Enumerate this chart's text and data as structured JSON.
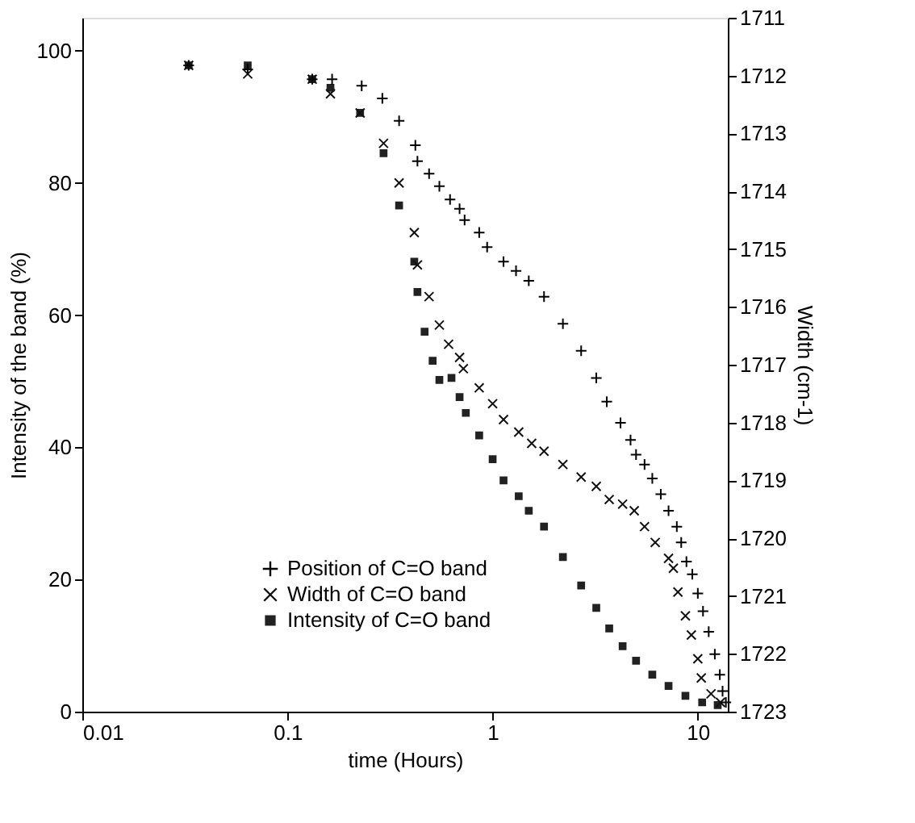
{
  "chart_data": {
    "type": "scatter",
    "xlabel": "time (Hours)",
    "ylabel": "Intensity of the band (%)",
    "y2label": "Width (cm-1)",
    "log": "x",
    "xlim": [
      0.01,
      14
    ],
    "xticks": [
      0.01,
      0.1,
      1,
      10
    ],
    "ylim": [
      0,
      105
    ],
    "yticks": [
      0,
      20,
      40,
      60,
      80,
      100
    ],
    "y2lim": [
      1723,
      1711
    ],
    "y2ticks": [
      1711,
      1712,
      1713,
      1714,
      1715,
      1716,
      1717,
      1718,
      1719,
      1720,
      1721,
      1722,
      1723
    ],
    "legend": "bottom",
    "grid": false,
    "series": [
      {
        "name": "Position of C=O band",
        "color": "#000000",
        "marker": "cross",
        "x": [
          0.033,
          0.064,
          0.132,
          0.165,
          0.23,
          0.29,
          0.35,
          0.42,
          0.43,
          0.49,
          0.55,
          0.62,
          0.69,
          0.73,
          0.86,
          0.94,
          1.13,
          1.3,
          1.5,
          1.78,
          2.2,
          2.7,
          3.2,
          3.6,
          4.2,
          4.7,
          5.0,
          5.5,
          6.0,
          6.6,
          7.2,
          7.9,
          8.3,
          8.8,
          9.4,
          10.0,
          10.6,
          11.3,
          12.1,
          12.8,
          13.2,
          13.7
        ],
        "values": [
          97.8,
          97.2,
          95.7,
          95.7,
          94.7,
          92.8,
          89.4,
          85.7,
          83.3,
          81.4,
          79.5,
          77.5,
          76.1,
          74.4,
          72.5,
          70.3,
          68.1,
          66.7,
          65.2,
          62.8,
          58.7,
          54.6,
          50.5,
          46.9,
          43.7,
          41.1,
          38.9,
          37.4,
          35.3,
          32.9,
          30.4,
          28.0,
          25.6,
          22.7,
          20.8,
          17.9,
          15.2,
          12.1,
          8.7,
          5.6,
          3.1,
          1.4
        ]
      },
      {
        "name": "Width of C=O band",
        "color": "#111111",
        "marker": "x",
        "x": [
          0.033,
          0.064,
          0.132,
          0.162,
          0.226,
          0.294,
          0.35,
          0.415,
          0.43,
          0.49,
          0.55,
          0.61,
          0.69,
          0.72,
          0.86,
          1.0,
          1.13,
          1.34,
          1.55,
          1.78,
          2.2,
          2.7,
          3.2,
          3.7,
          4.3,
          4.9,
          5.5,
          6.2,
          7.2,
          7.6,
          8.0,
          8.7,
          9.3,
          10.0,
          10.4,
          11.6,
          12.9
        ],
        "values": [
          97.8,
          96.5,
          95.7,
          93.5,
          90.6,
          86.0,
          80.0,
          72.5,
          67.6,
          62.8,
          58.5,
          55.6,
          53.6,
          51.9,
          49.0,
          46.6,
          44.2,
          42.3,
          40.6,
          39.4,
          37.4,
          35.5,
          34.1,
          32.1,
          31.4,
          30.4,
          28.0,
          25.6,
          23.2,
          21.7,
          18.1,
          14.5,
          11.6,
          8.0,
          5.1,
          2.7,
          1.4
        ]
      },
      {
        "name": "Intensity of C=O band",
        "color": "#222222",
        "marker": "square",
        "x": [
          0.033,
          0.064,
          0.132,
          0.162,
          0.226,
          0.294,
          0.35,
          0.415,
          0.43,
          0.466,
          0.51,
          0.55,
          0.63,
          0.69,
          0.74,
          0.86,
          1.0,
          1.13,
          1.34,
          1.5,
          1.78,
          2.2,
          2.7,
          3.2,
          3.7,
          4.3,
          5.0,
          6.0,
          7.2,
          8.7,
          10.5,
          12.5
        ],
        "values": [
          97.8,
          97.8,
          95.7,
          94.4,
          90.6,
          84.5,
          76.6,
          68.1,
          63.5,
          57.5,
          53.1,
          50.2,
          50.5,
          47.6,
          45.2,
          41.8,
          38.2,
          35.0,
          32.6,
          30.4,
          28.0,
          23.4,
          19.1,
          15.7,
          12.6,
          9.9,
          7.7,
          5.6,
          3.9,
          2.4,
          1.4,
          1.0
        ]
      }
    ]
  }
}
